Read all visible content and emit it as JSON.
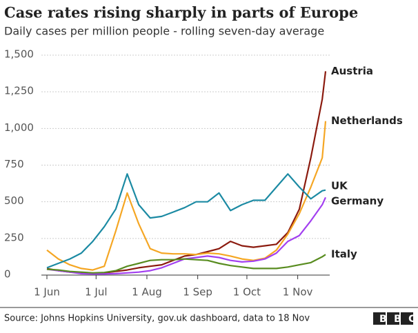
{
  "chart_data": {
    "type": "line",
    "title": "Case rates rising sharply in parts of Europe",
    "subtitle": "Daily cases per million people - rolling seven-day average",
    "source": "Source: Johns Hopkins University, gov.uk dashboard, data to 18 Nov",
    "logo": "BBC",
    "x": [
      "1 Jun",
      "8 Jun",
      "15 Jun",
      "22 Jun",
      "29 Jun",
      "6 Jul",
      "13 Jul",
      "20 Jul",
      "27 Jul",
      "3 Aug",
      "10 Aug",
      "17 Aug",
      "24 Aug",
      "31 Aug",
      "7 Sep",
      "14 Sep",
      "21 Sep",
      "28 Sep",
      "5 Oct",
      "12 Oct",
      "19 Oct",
      "26 Oct",
      "2 Nov",
      "9 Nov",
      "16 Nov",
      "18 Nov"
    ],
    "xlim": [
      "1 Jun",
      "18 Nov"
    ],
    "xticks": [
      "1 Jun",
      "1 Jul",
      "1 Aug",
      "1 Sep",
      "1 Oct",
      "1 Nov"
    ],
    "ylim": [
      0,
      1500
    ],
    "yticks": [
      0,
      250,
      500,
      750,
      {
        "value": 1000,
        "label": "1,000"
      },
      {
        "value": 1250,
        "label": "1,250"
      },
      {
        "value": 1500,
        "label": "1,500"
      }
    ],
    "grid": true,
    "series": [
      {
        "name": "Austria",
        "color": "#8b1a0e",
        "values": [
          45,
          30,
          20,
          15,
          10,
          15,
          25,
          35,
          50,
          60,
          70,
          100,
          130,
          140,
          160,
          180,
          230,
          200,
          190,
          200,
          210,
          290,
          450,
          800,
          1200,
          1390
        ]
      },
      {
        "name": "Netherlands",
        "color": "#f5a623",
        "values": [
          170,
          110,
          70,
          45,
          35,
          60,
          300,
          560,
          350,
          180,
          150,
          145,
          145,
          140,
          150,
          145,
          130,
          110,
          100,
          115,
          170,
          280,
          420,
          600,
          800,
          1050
        ]
      },
      {
        "name": "UK",
        "color": "#1b8aa3",
        "values": [
          50,
          80,
          110,
          150,
          230,
          330,
          450,
          690,
          480,
          390,
          400,
          430,
          460,
          500,
          500,
          560,
          440,
          480,
          510,
          510,
          600,
          690,
          600,
          520,
          575,
          580
        ]
      },
      {
        "name": "Germany",
        "color": "#a23ff0",
        "values": [
          40,
          30,
          20,
          10,
          8,
          8,
          10,
          15,
          20,
          30,
          50,
          80,
          110,
          120,
          130,
          120,
          100,
          90,
          95,
          110,
          150,
          230,
          270,
          370,
          480,
          530
        ]
      },
      {
        "name": "Italy",
        "color": "#588c1f",
        "values": [
          40,
          35,
          25,
          20,
          15,
          18,
          30,
          60,
          80,
          100,
          105,
          105,
          110,
          105,
          100,
          80,
          65,
          55,
          45,
          45,
          45,
          55,
          70,
          85,
          125,
          140
        ]
      }
    ]
  }
}
